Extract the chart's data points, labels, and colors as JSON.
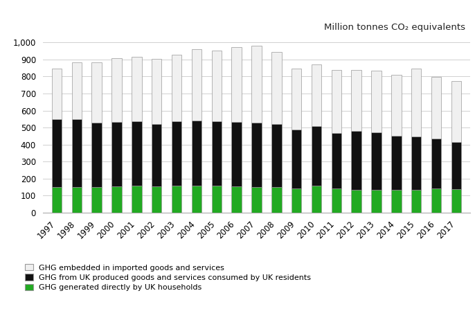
{
  "years": [
    1997,
    1998,
    1999,
    2000,
    2001,
    2002,
    2003,
    2004,
    2005,
    2006,
    2007,
    2008,
    2009,
    2010,
    2011,
    2012,
    2013,
    2014,
    2015,
    2016,
    2017
  ],
  "ghg_households": [
    150,
    150,
    150,
    155,
    158,
    155,
    158,
    158,
    158,
    152,
    150,
    148,
    140,
    160,
    140,
    135,
    135,
    135,
    135,
    140,
    138
  ],
  "ghg_uk_produced": [
    398,
    398,
    380,
    378,
    378,
    365,
    380,
    382,
    378,
    382,
    380,
    372,
    348,
    348,
    328,
    345,
    335,
    315,
    313,
    295,
    275
  ],
  "ghg_imported": [
    300,
    337,
    355,
    375,
    380,
    385,
    390,
    420,
    418,
    438,
    450,
    425,
    358,
    365,
    370,
    358,
    363,
    358,
    400,
    363,
    360
  ],
  "title": "Million tonnes CO₂ equivalents",
  "legend_labels": [
    "GHG embedded in imported goods and services",
    "GHG from UK produced goods and services consumed by UK residents",
    "GHG generated directly by UK households"
  ],
  "colors_bottom_to_top": [
    "#22aa22",
    "#111111",
    "#f0f0f0"
  ],
  "bar_edge_color": "#999999",
  "ylim": [
    0,
    1000
  ],
  "yticks": [
    0,
    100,
    200,
    300,
    400,
    500,
    600,
    700,
    800,
    900,
    1000
  ],
  "ytick_labels": [
    "0",
    "100",
    "200",
    "300",
    "400",
    "500",
    "600",
    "700",
    "800",
    "900",
    "1,000"
  ],
  "grid_color": "#d0d0d0",
  "bg_color": "#ffffff"
}
